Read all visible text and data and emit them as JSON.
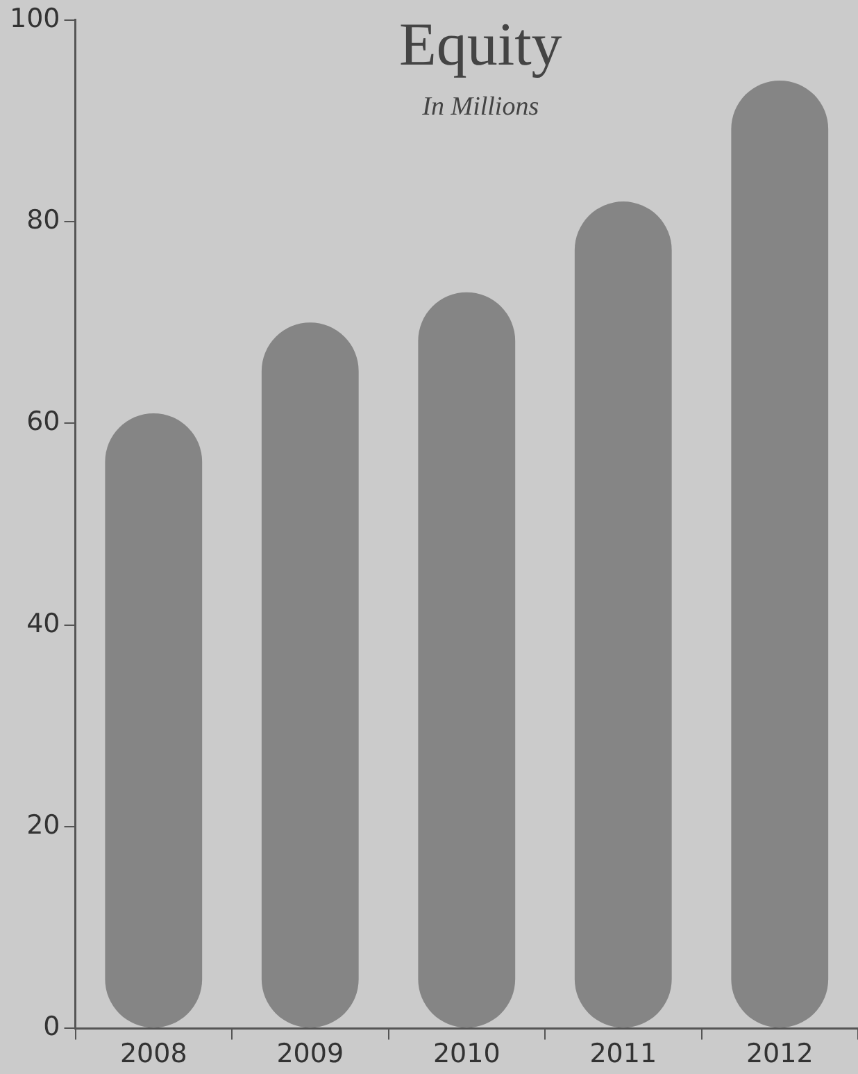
{
  "chart_data": {
    "type": "bar",
    "title": "Equity",
    "subtitle": "In Millions",
    "categories": [
      "2008",
      "2009",
      "2010",
      "2011",
      "2012"
    ],
    "values": [
      61,
      70,
      73,
      82,
      94
    ],
    "color": "#858585",
    "ylim": [
      0,
      100
    ],
    "yticks": [
      0,
      20,
      40,
      60,
      80,
      100
    ],
    "grid": false,
    "legend": false
  }
}
